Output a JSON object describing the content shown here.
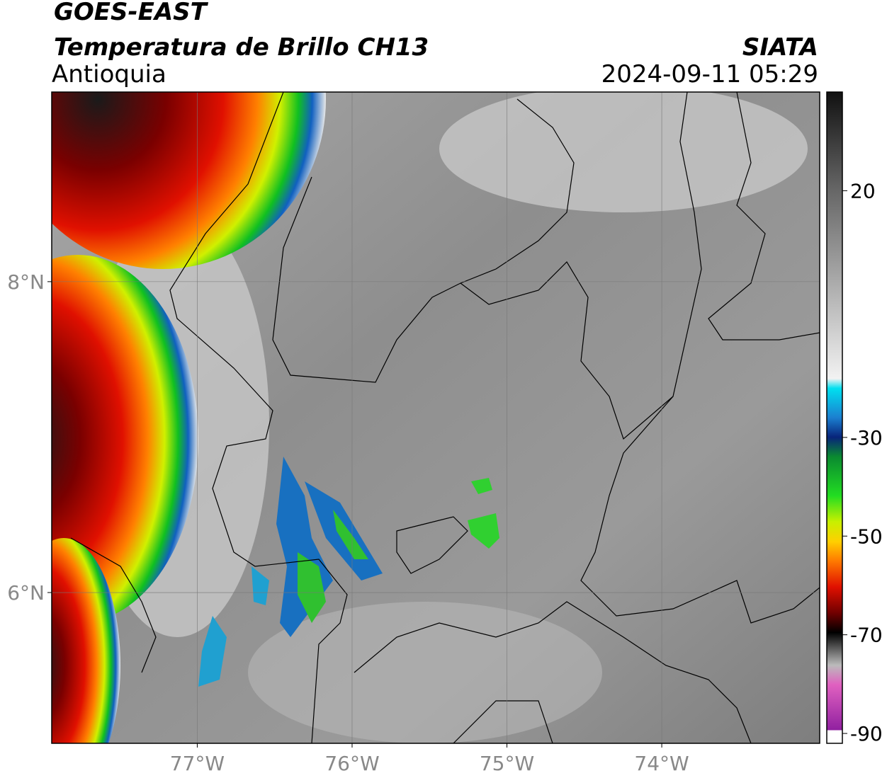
{
  "header": {
    "title_1": "GOES-EAST",
    "title_2": "Temperatura de Brillo CH13",
    "region": "Antioquia",
    "agency": "SIATA",
    "timestamp": "2024-09-11 05:29"
  },
  "map": {
    "lon_lim": [
      -77.94,
      -72.98
    ],
    "lat_lim": [
      5.03,
      9.22
    ],
    "lon_ticks": [
      {
        "value": -77,
        "label": "77°W"
      },
      {
        "value": -76,
        "label": "76°W"
      },
      {
        "value": -75,
        "label": "75°W"
      },
      {
        "value": -74,
        "label": "74°W"
      }
    ],
    "lat_ticks": [
      {
        "value": 8,
        "label": "8°N"
      },
      {
        "value": 6,
        "label": "6°N"
      }
    ]
  },
  "colorbar": {
    "lim": [
      -92,
      40
    ],
    "ticks": [
      20,
      -30,
      -50,
      -70,
      -90
    ]
  }
}
